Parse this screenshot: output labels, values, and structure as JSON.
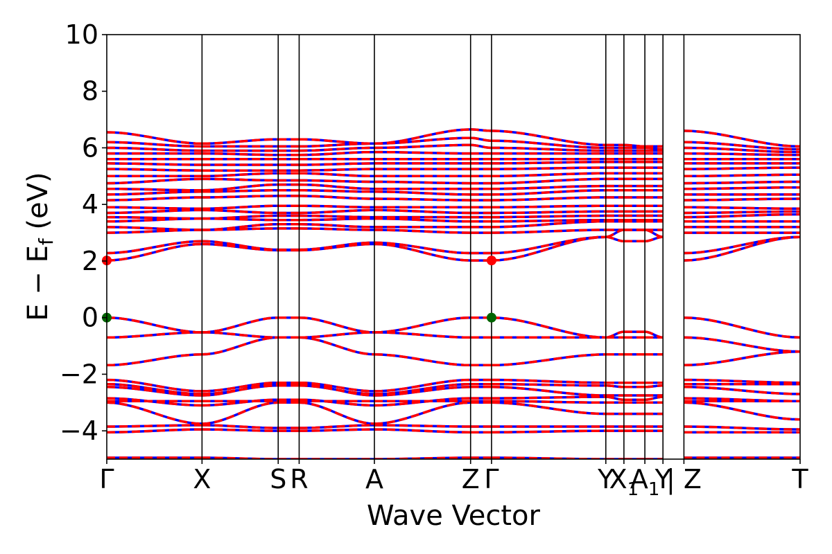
{
  "chart_data": {
    "type": "line",
    "xlabel": "Wave Vector",
    "ylabel_main": "E − E",
    "ylabel_sub": "f",
    "ylabel_unit": " (eV)",
    "ylim": [
      -5,
      10
    ],
    "yticks": [
      -4,
      -2,
      0,
      2,
      4,
      6,
      8,
      10
    ],
    "ytick_labels": [
      "−4",
      "−2",
      "0",
      "2",
      "4",
      "6",
      "8",
      "10"
    ],
    "xlim": [
      0,
      7.28
    ],
    "kpoints": [
      {
        "x": 0.0,
        "label": "Γ",
        "sub": ""
      },
      {
        "x": 1.0,
        "label": "X",
        "sub": ""
      },
      {
        "x": 1.8,
        "label": "S",
        "sub": ""
      },
      {
        "x": 2.02,
        "label": "R",
        "sub": ""
      },
      {
        "x": 2.81,
        "label": "A",
        "sub": ""
      },
      {
        "x": 3.82,
        "label": "Z",
        "sub": ""
      },
      {
        "x": 4.04,
        "label": "Γ",
        "sub": ""
      },
      {
        "x": 5.24,
        "label": "Y",
        "sub": ""
      },
      {
        "x": 5.43,
        "label": "X",
        "sub": "1"
      },
      {
        "x": 5.65,
        "label": "A",
        "sub": "1"
      },
      {
        "x": 5.84,
        "label": "Y",
        "sub": ""
      },
      {
        "x": 6.06,
        "label": "| Z",
        "sub": ""
      },
      {
        "x": 7.28,
        "label": "T",
        "sub": ""
      }
    ],
    "discontinuities": [
      [
        5.84,
        6.06
      ]
    ],
    "valence_bands": [
      [
        -0.0,
        -0.52,
        -0.0,
        -0.0,
        -0.52,
        -0.0,
        -0.0,
        -0.7,
        -0.5,
        -0.5,
        -0.7,
        -0.0,
        -0.7
      ],
      [
        -0.7,
        -0.52,
        -0.7,
        -0.7,
        -0.52,
        -0.7,
        -0.7,
        -0.7,
        -0.7,
        -0.7,
        -0.7,
        -0.7,
        -1.2
      ],
      [
        -1.68,
        -1.3,
        -0.7,
        -0.7,
        -1.3,
        -1.68,
        -1.68,
        -1.3,
        -1.3,
        -1.3,
        -1.3,
        -1.68,
        -1.2
      ],
      [
        -2.2,
        -2.6,
        -2.3,
        -2.3,
        -2.6,
        -2.2,
        -2.2,
        -2.3,
        -2.3,
        -2.3,
        -2.3,
        -2.2,
        -2.3
      ],
      [
        -2.35,
        -2.7,
        -2.4,
        -2.4,
        -2.7,
        -2.35,
        -2.35,
        -2.4,
        -2.45,
        -2.45,
        -2.4,
        -2.35,
        -2.35
      ],
      [
        -2.45,
        -2.75,
        -2.35,
        -2.35,
        -2.75,
        -2.45,
        -2.45,
        -2.75,
        -2.75,
        -2.75,
        -2.75,
        -2.45,
        -2.7
      ],
      [
        -2.85,
        -3.1,
        -2.9,
        -2.9,
        -3.1,
        -2.85,
        -2.85,
        -2.8,
        -2.9,
        -2.9,
        -2.8,
        -2.85,
        -2.95
      ],
      [
        -2.95,
        -2.95,
        -2.95,
        -2.95,
        -2.95,
        -2.95,
        -2.95,
        -3.0,
        -3.0,
        -3.0,
        -3.0,
        -2.95,
        -2.95
      ],
      [
        -3.0,
        -3.75,
        -3.0,
        -3.0,
        -3.75,
        -3.0,
        -3.0,
        -3.4,
        -3.4,
        -3.4,
        -3.4,
        -3.0,
        -3.6
      ],
      [
        -3.85,
        -3.8,
        -3.9,
        -3.9,
        -3.8,
        -3.85,
        -3.85,
        -3.85,
        -3.85,
        -3.85,
        -3.85,
        -3.85,
        -3.95
      ],
      [
        -4.05,
        -3.95,
        -4.0,
        -4.0,
        -3.95,
        -4.05,
        -4.05,
        -4.0,
        -4.0,
        -4.0,
        -4.0,
        -4.05,
        -4.05
      ],
      [
        -4.95,
        -4.95,
        -5.0,
        -5.0,
        -5.0,
        -4.95,
        -4.95,
        -5.0,
        -5.0,
        -5.0,
        -5.0,
        -4.95,
        -4.95
      ]
    ],
    "conduction_bands": [
      [
        2.02,
        2.6,
        2.38,
        2.38,
        2.6,
        2.02,
        2.02,
        2.85,
        2.7,
        2.7,
        2.85,
        2.02,
        2.85
      ],
      [
        2.28,
        2.7,
        2.4,
        2.4,
        2.65,
        2.28,
        2.28,
        2.85,
        3.1,
        3.1,
        2.85,
        2.28,
        2.85
      ],
      [
        3.0,
        3.1,
        3.15,
        3.15,
        3.1,
        3.0,
        3.0,
        3.1,
        3.1,
        3.1,
        3.1,
        3.0,
        3.0
      ],
      [
        3.2,
        3.1,
        3.3,
        3.3,
        3.2,
        3.2,
        3.2,
        3.4,
        3.4,
        3.4,
        3.4,
        3.2,
        3.2
      ],
      [
        3.4,
        3.5,
        3.45,
        3.45,
        3.5,
        3.4,
        3.4,
        3.45,
        3.45,
        3.45,
        3.45,
        3.4,
        3.4
      ],
      [
        3.55,
        3.5,
        3.6,
        3.6,
        3.55,
        3.55,
        3.55,
        3.6,
        3.6,
        3.6,
        3.6,
        3.55,
        3.65
      ],
      [
        3.7,
        3.8,
        3.7,
        3.7,
        3.8,
        3.7,
        3.7,
        3.75,
        3.75,
        3.75,
        3.75,
        3.7,
        3.75
      ],
      [
        3.9,
        3.85,
        3.95,
        3.95,
        3.9,
        3.9,
        3.9,
        3.95,
        3.95,
        3.95,
        3.95,
        3.9,
        3.85
      ],
      [
        4.15,
        4.25,
        4.3,
        4.3,
        4.2,
        4.15,
        4.15,
        4.25,
        4.25,
        4.25,
        4.25,
        4.15,
        4.2
      ],
      [
        4.35,
        4.45,
        4.5,
        4.5,
        4.45,
        4.35,
        4.35,
        4.5,
        4.5,
        4.5,
        4.5,
        4.35,
        4.35
      ],
      [
        4.55,
        4.5,
        4.7,
        4.7,
        4.55,
        4.55,
        4.55,
        4.65,
        4.65,
        4.65,
        4.65,
        4.55,
        4.6
      ],
      [
        4.75,
        4.9,
        4.85,
        4.85,
        4.8,
        4.75,
        4.75,
        4.9,
        4.9,
        4.9,
        4.9,
        4.75,
        4.8
      ],
      [
        5.0,
        5.0,
        5.1,
        5.1,
        5.0,
        5.0,
        5.0,
        5.1,
        5.1,
        5.1,
        5.1,
        5.0,
        5.05
      ],
      [
        5.25,
        5.2,
        5.2,
        5.2,
        5.25,
        5.25,
        5.25,
        5.3,
        5.3,
        5.3,
        5.3,
        5.25,
        5.3
      ],
      [
        5.45,
        5.4,
        5.4,
        5.4,
        5.45,
        5.45,
        5.45,
        5.5,
        5.5,
        5.5,
        5.5,
        5.45,
        5.45
      ],
      [
        5.6,
        5.6,
        5.6,
        5.6,
        5.6,
        5.6,
        5.6,
        5.6,
        5.6,
        5.6,
        5.6,
        5.6,
        5.6
      ],
      [
        5.8,
        5.8,
        5.75,
        5.75,
        5.85,
        5.8,
        5.8,
        5.8,
        5.8,
        5.8,
        5.8,
        5.8,
        5.75
      ],
      [
        6.0,
        5.9,
        5.9,
        5.9,
        6.0,
        6.1,
        6.0,
        5.9,
        5.9,
        5.9,
        5.9,
        6.0,
        5.85
      ],
      [
        6.2,
        6.05,
        6.05,
        6.05,
        6.15,
        6.35,
        6.25,
        6.0,
        6.0,
        6.0,
        5.95,
        6.2,
        5.95
      ],
      [
        6.55,
        6.15,
        6.3,
        6.3,
        6.15,
        6.65,
        6.6,
        6.1,
        6.1,
        6.05,
        6.05,
        6.6,
        6.05
      ]
    ],
    "vbm_points": [
      {
        "x": 0.0,
        "y": 0.0
      },
      {
        "x": 4.04,
        "y": 0.0
      }
    ],
    "cbm_points": [
      {
        "x": 0.0,
        "y": 2.02
      },
      {
        "x": 4.04,
        "y": 2.02
      }
    ],
    "colors": {
      "spin_up": "#0000ff",
      "spin_down": "#ff0000",
      "vbm": "#006400",
      "cbm": "#ff0000",
      "axes": "#000000"
    },
    "grid": false
  }
}
